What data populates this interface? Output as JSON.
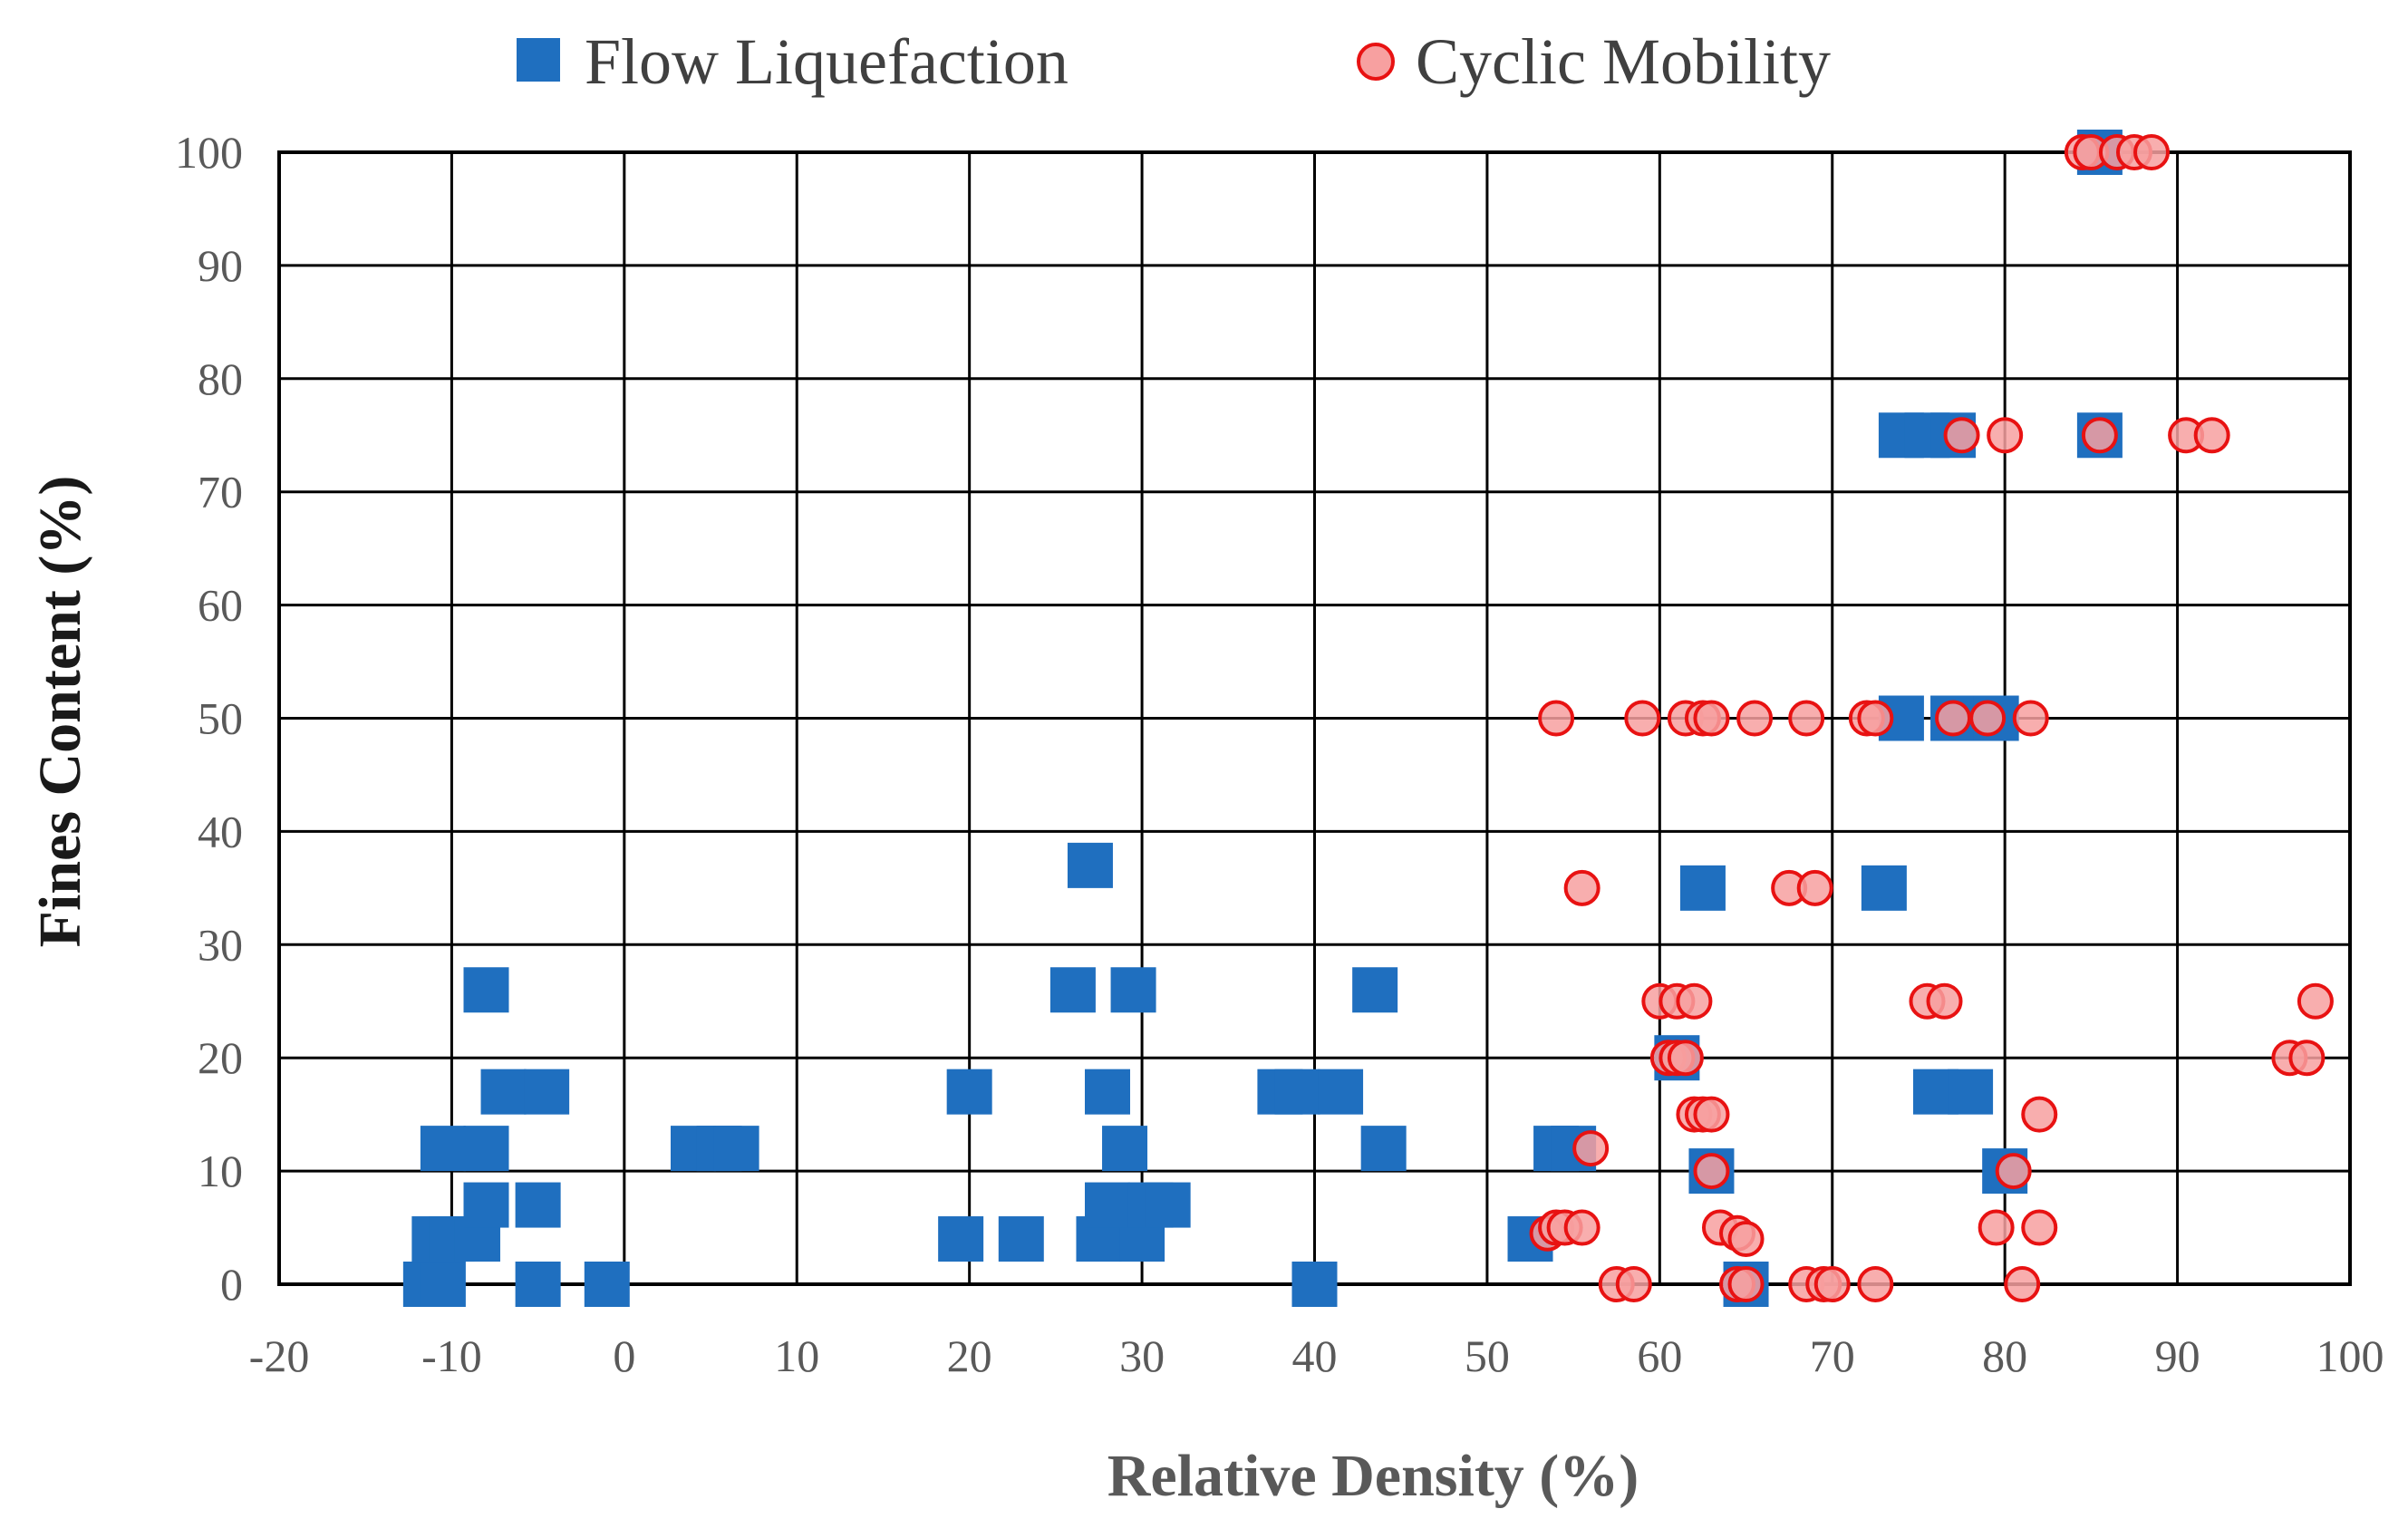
{
  "chart_data": {
    "type": "scatter",
    "xlabel": "Relative Density (%)",
    "ylabel": "Fines Content (%)",
    "xlim": [
      -20,
      100
    ],
    "ylim": [
      0,
      100
    ],
    "x_ticks": [
      "-20",
      "-10",
      "0",
      "10",
      "20",
      "30",
      "40",
      "50",
      "60",
      "70",
      "80",
      "90",
      "100"
    ],
    "y_ticks": [
      "0",
      "10",
      "20",
      "30",
      "40",
      "50",
      "60",
      "70",
      "80",
      "90",
      "100"
    ],
    "grid": true,
    "legend_position": "top",
    "colors": {
      "flow_fill": "#1F6FBF",
      "cyclic_fill": "#F7A0A0",
      "cyclic_edge": "#E81212",
      "axis_title": "#1a1a1a",
      "xlabel_color": "#595959"
    },
    "series": [
      {
        "name": "Flow Liquefaction",
        "marker": "square",
        "points": [
          [
            -11.5,
            0
          ],
          [
            -10.5,
            0
          ],
          [
            -5,
            0
          ],
          [
            -1,
            0
          ],
          [
            40,
            0
          ],
          [
            65,
            0
          ],
          [
            -11,
            4
          ],
          [
            -10,
            4
          ],
          [
            -8.5,
            4
          ],
          [
            19.5,
            4
          ],
          [
            23,
            4
          ],
          [
            27.5,
            4
          ],
          [
            30,
            4
          ],
          [
            52.5,
            4
          ],
          [
            -8,
            7
          ],
          [
            -5,
            7
          ],
          [
            28,
            7
          ],
          [
            30.5,
            7
          ],
          [
            31.5,
            7
          ],
          [
            63,
            10
          ],
          [
            80,
            10
          ],
          [
            -10.5,
            12
          ],
          [
            -8,
            12
          ],
          [
            4,
            12
          ],
          [
            5.5,
            12
          ],
          [
            6.5,
            12
          ],
          [
            29,
            12
          ],
          [
            44,
            12
          ],
          [
            54,
            12
          ],
          [
            55,
            12
          ],
          [
            -7,
            17
          ],
          [
            -4.5,
            17
          ],
          [
            20,
            17
          ],
          [
            28,
            17
          ],
          [
            38,
            17
          ],
          [
            39,
            17
          ],
          [
            41.5,
            17
          ],
          [
            76,
            17
          ],
          [
            78,
            17
          ],
          [
            61,
            20
          ],
          [
            -8,
            26
          ],
          [
            26,
            26
          ],
          [
            29.5,
            26
          ],
          [
            43.5,
            26
          ],
          [
            62.5,
            35
          ],
          [
            73,
            35
          ],
          [
            27,
            37
          ],
          [
            74,
            50
          ],
          [
            77,
            50
          ],
          [
            79.5,
            50
          ],
          [
            74,
            75
          ],
          [
            75.5,
            75
          ],
          [
            77,
            75
          ],
          [
            85.5,
            75
          ],
          [
            85.5,
            100
          ]
        ]
      },
      {
        "name": "Cyclic Mobility",
        "marker": "circle",
        "points": [
          [
            57.5,
            0
          ],
          [
            58.5,
            0
          ],
          [
            64.5,
            0
          ],
          [
            65,
            0
          ],
          [
            68.5,
            0
          ],
          [
            69.5,
            0
          ],
          [
            70,
            0
          ],
          [
            72.5,
            0
          ],
          [
            81,
            0
          ],
          [
            53.5,
            4.5
          ],
          [
            54,
            5
          ],
          [
            54.5,
            5
          ],
          [
            55.5,
            5
          ],
          [
            63.5,
            5
          ],
          [
            64.5,
            4.5
          ],
          [
            65,
            4
          ],
          [
            79.5,
            5
          ],
          [
            82,
            5
          ],
          [
            63,
            10
          ],
          [
            80.5,
            10
          ],
          [
            56,
            12
          ],
          [
            62,
            15
          ],
          [
            62.5,
            15
          ],
          [
            63,
            15
          ],
          [
            82,
            15
          ],
          [
            60.5,
            20
          ],
          [
            61,
            20
          ],
          [
            61.5,
            20
          ],
          [
            96.5,
            20
          ],
          [
            97.5,
            20
          ],
          [
            60,
            25
          ],
          [
            61,
            25
          ],
          [
            62,
            25
          ],
          [
            75.5,
            25
          ],
          [
            76.5,
            25
          ],
          [
            98,
            25
          ],
          [
            55.5,
            35
          ],
          [
            67.5,
            35
          ],
          [
            69,
            35
          ],
          [
            54,
            50
          ],
          [
            59,
            50
          ],
          [
            61.5,
            50
          ],
          [
            62.5,
            50
          ],
          [
            63,
            50
          ],
          [
            65.5,
            50
          ],
          [
            68.5,
            50
          ],
          [
            72,
            50
          ],
          [
            72.5,
            50
          ],
          [
            77,
            50
          ],
          [
            79,
            50
          ],
          [
            81.5,
            50
          ],
          [
            77.5,
            75
          ],
          [
            80,
            75
          ],
          [
            85.5,
            75
          ],
          [
            90.5,
            75
          ],
          [
            92,
            75
          ],
          [
            84.5,
            100
          ],
          [
            85,
            100
          ],
          [
            86.5,
            100
          ],
          [
            87.5,
            100
          ],
          [
            88.5,
            100
          ]
        ]
      }
    ]
  }
}
